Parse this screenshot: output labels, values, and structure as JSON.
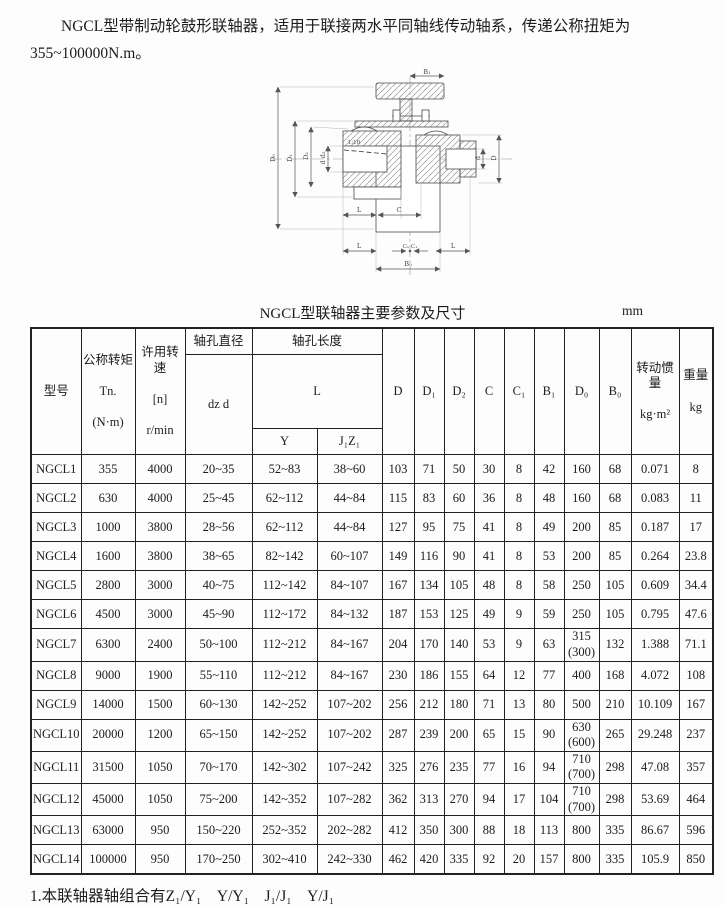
{
  "page": {
    "intro_line1": "NGCL型带制动轮鼓形联轴器，适用于联接两水平同轴线传动轴系，传递公称扭矩为",
    "intro_line2": "355~100000N.m。",
    "note": "1.本联轴器轴组合有Z₁/Y₁　Y/Y₁　J₁/J₁　Y/J₁"
  },
  "drawing": {
    "taper": "1:10",
    "b1": "B₁",
    "d0": "D₀",
    "d1": "D₁",
    "d2": "D₂",
    "dd2": "d d₂",
    "d_small": "d",
    "d_big": "D",
    "l": "L",
    "c": "C",
    "c1_pair": "C₁ C₁",
    "b0": "B₀"
  },
  "table": {
    "title": "NGCL型联轴器主要参数及尺寸",
    "unit": "mm",
    "header": {
      "model": "型号",
      "torque_l1": "公称转矩",
      "torque_l2": "Tn.",
      "torque_l3": "(N·m)",
      "speed_l1": "许用转速",
      "speed_l2": "[n]",
      "speed_l3": "r/min",
      "bore_dia": "轴孔直径",
      "bore_dia_sub": "dz d",
      "bore_len": "轴孔长度",
      "bore_len_sub": "L",
      "col_y": "Y",
      "col_j1z1": "J₁Z₁",
      "d": "D",
      "d1": "D₁",
      "d2": "D₂",
      "c": "C",
      "c1": "C₁",
      "b1": "B₁",
      "d0": "D₀",
      "b0": "B₀",
      "inertia_l1": "转动惯量",
      "inertia_l2": "kg·m²",
      "weight_l1": "重量",
      "weight_l2": "kg"
    },
    "rows": [
      [
        "NGCL1",
        "355",
        "4000",
        "20~35",
        "52~83",
        "38~60",
        "103",
        "71",
        "50",
        "30",
        "8",
        "42",
        "160",
        "68",
        "0.071",
        "8"
      ],
      [
        "NGCL2",
        "630",
        "4000",
        "25~45",
        "62~112",
        "44~84",
        "115",
        "83",
        "60",
        "36",
        "8",
        "48",
        "160",
        "68",
        "0.083",
        "11"
      ],
      [
        "NGCL3",
        "1000",
        "3800",
        "28~56",
        "62~112",
        "44~84",
        "127",
        "95",
        "75",
        "41",
        "8",
        "49",
        "200",
        "85",
        "0.187",
        "17"
      ],
      [
        "NGCL4",
        "1600",
        "3800",
        "38~65",
        "82~142",
        "60~107",
        "149",
        "116",
        "90",
        "41",
        "8",
        "53",
        "200",
        "85",
        "0.264",
        "23.8"
      ],
      [
        "NGCL5",
        "2800",
        "3000",
        "40~75",
        "112~142",
        "84~107",
        "167",
        "134",
        "105",
        "48",
        "8",
        "58",
        "250",
        "105",
        "0.609",
        "34.4"
      ],
      [
        "NGCL6",
        "4500",
        "3000",
        "45~90",
        "112~172",
        "84~132",
        "187",
        "153",
        "125",
        "49",
        "9",
        "59",
        "250",
        "105",
        "0.795",
        "47.6"
      ],
      [
        "NGCL7",
        "6300",
        "2400",
        "50~100",
        "112~212",
        "84~167",
        "204",
        "170",
        "140",
        "53",
        "9",
        "63",
        "315\n(300)",
        "132",
        "1.388",
        "71.1"
      ],
      [
        "NGCL8",
        "9000",
        "1900",
        "55~110",
        "112~212",
        "84~167",
        "230",
        "186",
        "155",
        "64",
        "12",
        "77",
        "400",
        "168",
        "4.072",
        "108"
      ],
      [
        "NGCL9",
        "14000",
        "1500",
        "60~130",
        "142~252",
        "107~202",
        "256",
        "212",
        "180",
        "71",
        "13",
        "80",
        "500",
        "210",
        "10.109",
        "167"
      ],
      [
        "NGCL10",
        "20000",
        "1200",
        "65~150",
        "142~252",
        "107~202",
        "287",
        "239",
        "200",
        "65",
        "15",
        "90",
        "630\n(600)",
        "265",
        "29.248",
        "237"
      ],
      [
        "NGCL11",
        "31500",
        "1050",
        "70~170",
        "142~302",
        "107~242",
        "325",
        "276",
        "235",
        "77",
        "16",
        "94",
        "710\n(700)",
        "298",
        "47.08",
        "357"
      ],
      [
        "NGCL12",
        "45000",
        "1050",
        "75~200",
        "142~352",
        "107~282",
        "362",
        "313",
        "270",
        "94",
        "17",
        "104",
        "710\n(700)",
        "298",
        "53.69",
        "464"
      ],
      [
        "NGCL13",
        "63000",
        "950",
        "150~220",
        "252~352",
        "202~282",
        "412",
        "350",
        "300",
        "88",
        "18",
        "113",
        "800",
        "335",
        "86.67",
        "596"
      ],
      [
        "NGCL14",
        "100000",
        "950",
        "170~250",
        "302~410",
        "242~330",
        "462",
        "420",
        "335",
        "92",
        "20",
        "157",
        "800",
        "335",
        "105.9",
        "850"
      ]
    ]
  }
}
